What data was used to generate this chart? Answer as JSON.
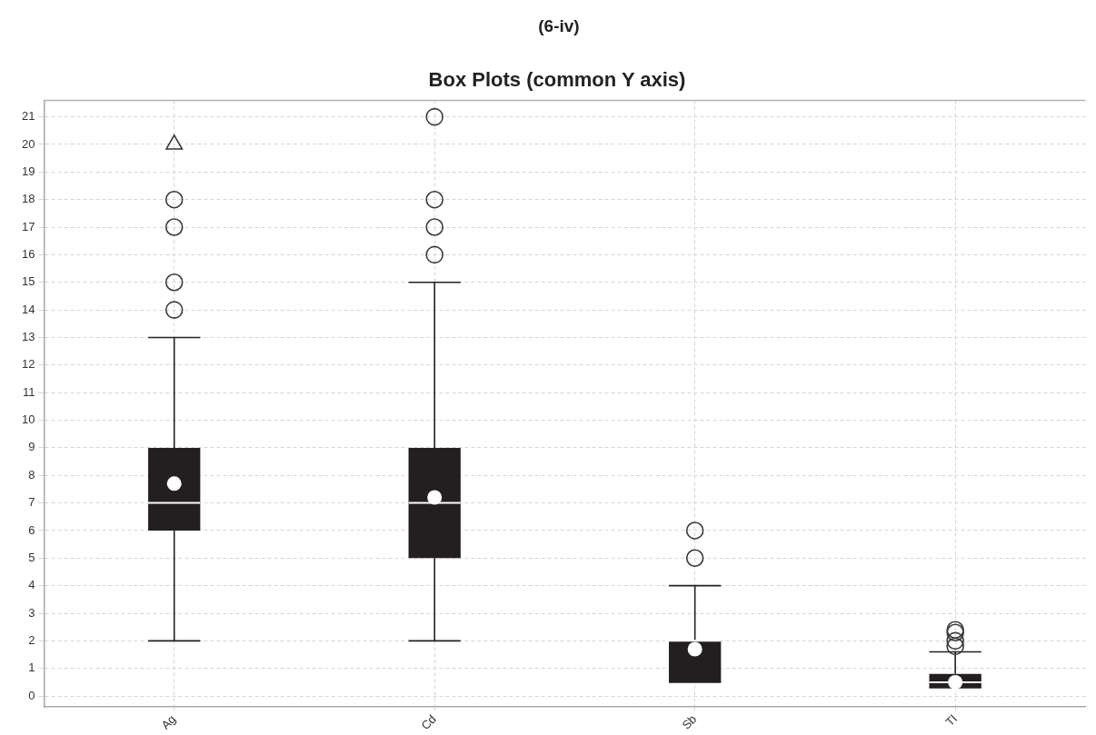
{
  "chart_data": {
    "type": "box",
    "title": "Box Plots (common Y axis)",
    "annotations": [
      "(6-iv)"
    ],
    "categories": [
      "Ag",
      "Cd",
      "Sb",
      "Tl"
    ],
    "series": [
      {
        "color": "#231f20",
        "boxes": [
          {
            "low": 2,
            "q1": 6,
            "median": 7,
            "q3": 9,
            "high": 13,
            "mean": 7.7,
            "outliers": [
              14,
              15,
              17,
              18
            ]
          },
          {
            "low": 2,
            "q1": 5,
            "median": 7,
            "q3": 9,
            "high": 15,
            "mean": 7.2,
            "outliers": [
              16,
              17,
              18,
              21
            ]
          },
          {
            "low": 0.5,
            "q1": 0.5,
            "median": 2,
            "q3": 2,
            "high": 4,
            "mean": 1.7,
            "outliers": [
              5,
              6
            ]
          },
          {
            "low": 0.3,
            "q1": 0.3,
            "median": 0.5,
            "q3": 0.8,
            "high": 1.6,
            "mean": 0.5,
            "outliers": [
              1.8,
              2.0,
              2.3,
              2.4
            ]
          }
        ]
      },
      {
        "type": "scatter",
        "x": [
          "Ag"
        ],
        "values": [
          20
        ],
        "marker": "triangle",
        "color": "#333333"
      }
    ],
    "ylim": [
      -0.4,
      21.6
    ],
    "yticks": [
      0,
      1,
      2,
      3,
      4,
      5,
      6,
      7,
      8,
      9,
      10,
      11,
      12,
      13,
      14,
      15,
      16,
      17,
      18,
      19,
      20,
      21
    ],
    "grid": true,
    "marker": "circle"
  }
}
